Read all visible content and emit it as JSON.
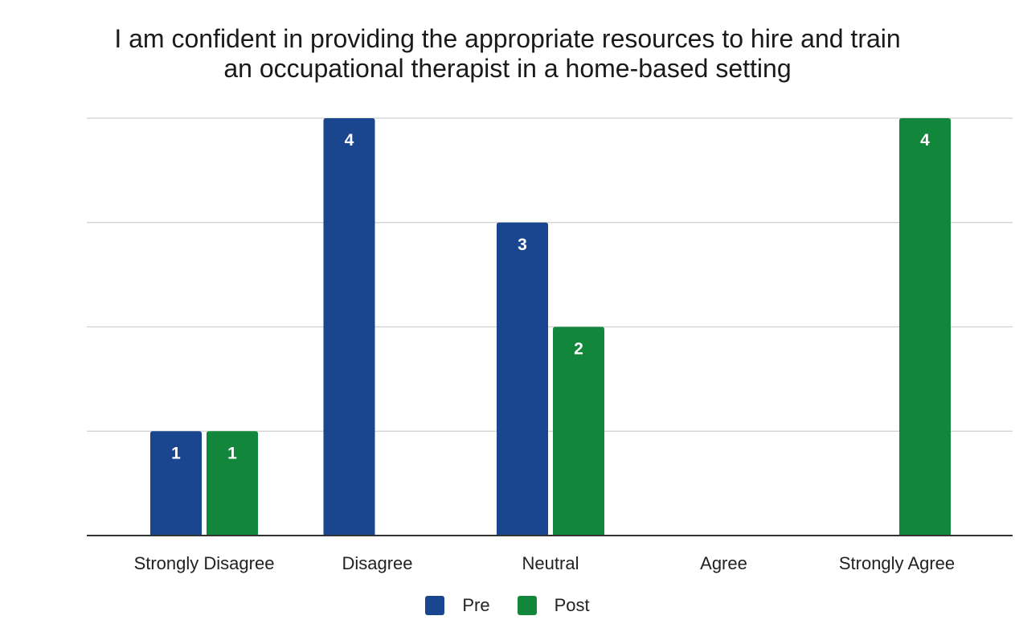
{
  "chart_data": {
    "type": "bar",
    "title_lines": [
      "I am confident in providing the appropriate resources to hire and train",
      "an occupational therapist in a home-based setting"
    ],
    "categories": [
      "Strongly Disagree",
      "Disagree",
      "Neutral",
      "Agree",
      "Strongly Agree"
    ],
    "series": [
      {
        "name": "Pre",
        "color": "#1a468f",
        "values": [
          1,
          4,
          3,
          0,
          0
        ]
      },
      {
        "name": "Post",
        "color": "#12873c",
        "values": [
          1,
          0,
          2,
          0,
          4
        ]
      }
    ],
    "ylim": [
      0,
      4
    ],
    "grid": true,
    "legend_position": "bottom",
    "data_labels": true
  }
}
